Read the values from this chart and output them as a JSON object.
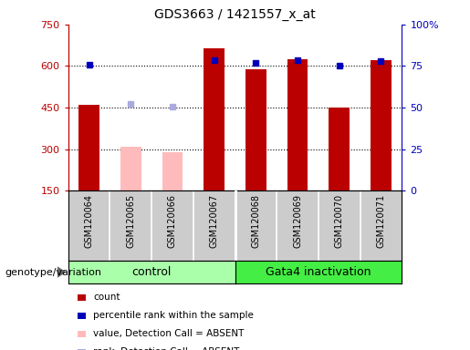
{
  "title": "GDS3663 / 1421557_x_at",
  "samples": [
    "GSM120064",
    "GSM120065",
    "GSM120066",
    "GSM120067",
    "GSM120068",
    "GSM120069",
    "GSM120070",
    "GSM120071"
  ],
  "red_bars": [
    460,
    null,
    null,
    665,
    590,
    625,
    450,
    620
  ],
  "pink_bars": [
    null,
    310,
    290,
    null,
    null,
    null,
    null,
    null
  ],
  "blue_squares": [
    605,
    null,
    null,
    622,
    613,
    620,
    601,
    617
  ],
  "light_blue_squares": [
    null,
    462,
    455,
    null,
    null,
    null,
    null,
    null
  ],
  "ylim_left": [
    150,
    750
  ],
  "ylim_right": [
    0,
    100
  ],
  "yticks_left": [
    150,
    300,
    450,
    600,
    750
  ],
  "yticks_right": [
    0,
    25,
    50,
    75,
    100
  ],
  "ytick_labels_left": [
    "150",
    "300",
    "450",
    "600",
    "750"
  ],
  "ytick_labels_right": [
    "0",
    "25",
    "50",
    "75",
    "100%"
  ],
  "grid_lines": [
    300,
    450,
    600
  ],
  "red_color": "#bb0000",
  "pink_color": "#ffbbbb",
  "blue_color": "#0000bb",
  "light_blue_color": "#aaaadd",
  "control_color": "#aaffaa",
  "gata4_color": "#44ee44",
  "gray_color": "#cccccc",
  "legend_items": [
    {
      "label": "count",
      "color": "#bb0000"
    },
    {
      "label": "percentile rank within the sample",
      "color": "#0000bb"
    },
    {
      "label": "value, Detection Call = ABSENT",
      "color": "#ffbbbb"
    },
    {
      "label": "rank, Detection Call = ABSENT",
      "color": "#aaaadd"
    }
  ],
  "control_label": "control",
  "gata4_label": "Gata4 inactivation",
  "genotype_label": "genotype/variation"
}
